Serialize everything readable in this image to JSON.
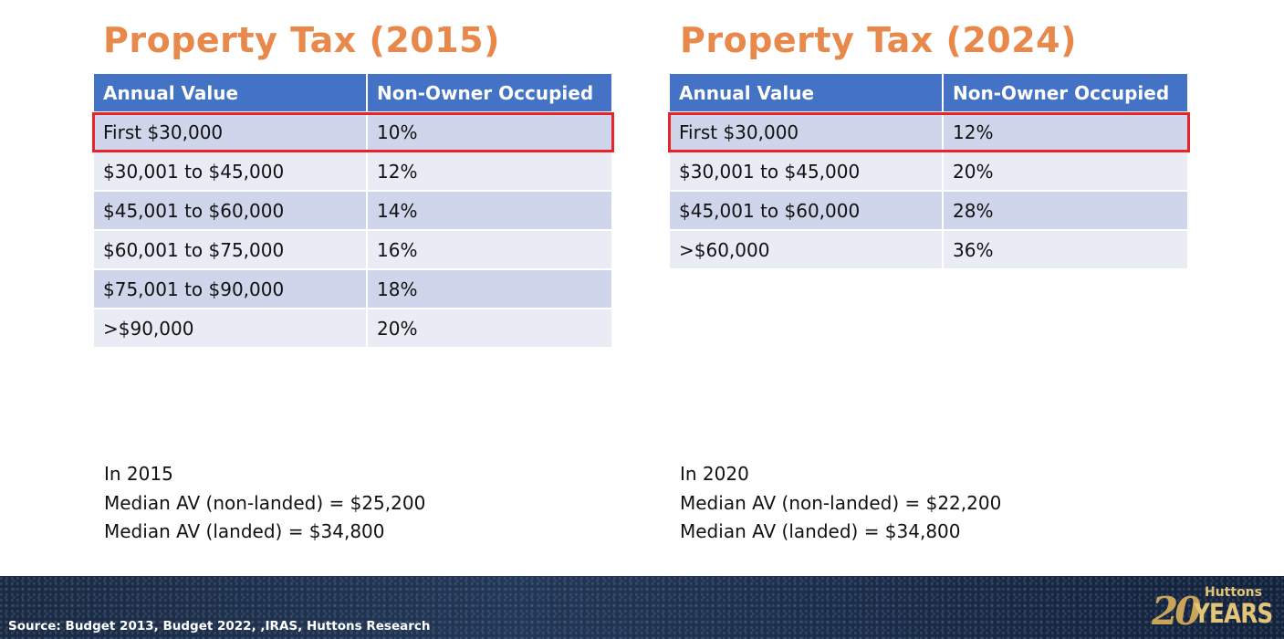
{
  "left": {
    "title": "Property Tax (2015)",
    "headers": [
      "Annual Value",
      "Non-Owner Occupied"
    ],
    "rows": [
      [
        "First $30,000",
        "10%"
      ],
      [
        "$30,001 to $45,000",
        "12%"
      ],
      [
        "$45,001 to $60,000",
        "14%"
      ],
      [
        "$60,001 to $75,000",
        "16%"
      ],
      [
        "$75,001 to $90,000",
        "18%"
      ],
      [
        ">$90,000",
        "20%"
      ]
    ],
    "note": {
      "line1": "In 2015",
      "line2": "Median AV (non-landed) = $25,200",
      "line3": "Median AV (landed) = $34,800"
    }
  },
  "right": {
    "title": "Property Tax (2024)",
    "headers": [
      "Annual Value",
      "Non-Owner Occupied"
    ],
    "rows": [
      [
        "First $30,000",
        "12%"
      ],
      [
        "$30,001 to $45,000",
        "20%"
      ],
      [
        "$45,001 to $60,000",
        "28%"
      ],
      [
        ">$60,000",
        "36%"
      ]
    ],
    "note": {
      "line1": "In 2020",
      "line2": "Median AV (non-landed) = $22,200",
      "line3": "Median AV (landed) = $34,800"
    }
  },
  "footer": {
    "source": "Source: Budget 2013, Budget 2022, ,IRAS, Huttons Research",
    "logo": {
      "number": "20",
      "brand": "Huttons",
      "years": "YEARS"
    }
  },
  "colors": {
    "title": "#e8884a",
    "header_bg": "#4472c4",
    "row_odd": "#cfd5ea",
    "row_even": "#e9ebf5",
    "highlight": "#e8232a",
    "footer_bg": "#16243a",
    "logo_gold": "#e3c57a"
  }
}
